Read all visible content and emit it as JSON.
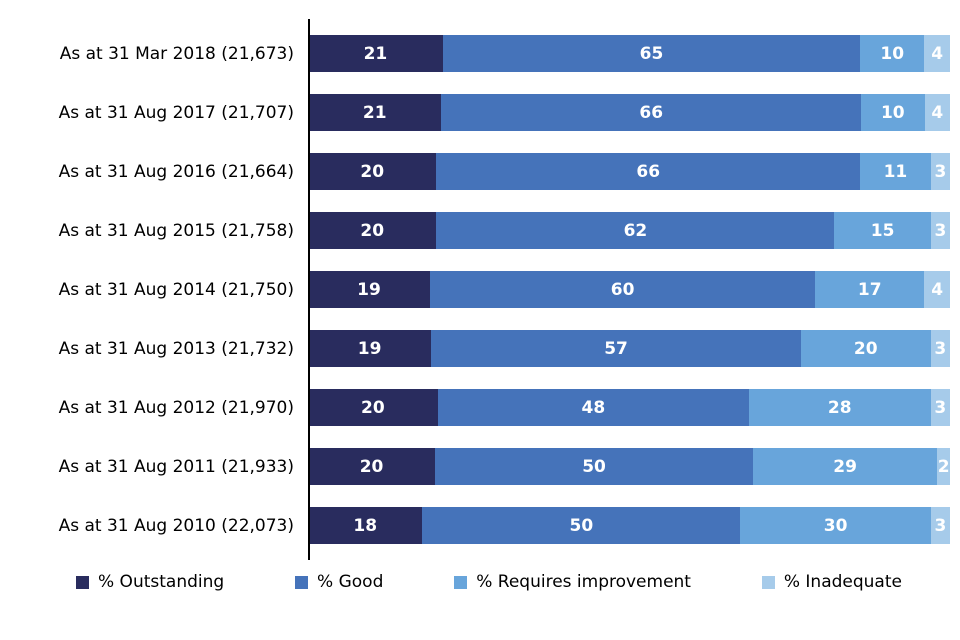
{
  "chart_data": {
    "type": "bar",
    "orientation": "horizontal",
    "stacked": true,
    "title": "",
    "xlabel": "",
    "ylabel": "",
    "xlim": [
      0,
      100
    ],
    "grid": false,
    "legend_position": "bottom",
    "categories": [
      "As at 31 Mar 2018 (21,673)",
      "As at 31 Aug 2017 (21,707)",
      "As at 31 Aug 2016 (21,664)",
      "As at 31 Aug 2015 (21,758)",
      "As at 31 Aug 2014 (21,750)",
      "As at 31 Aug 2013 (21,732)",
      "As at 31 Aug 2012 (21,970)",
      "As at 31 Aug 2011 (21,933)",
      "As at 31 Aug 2010 (22,073)"
    ],
    "series": [
      {
        "name": "% Outstanding",
        "color": "#292C5E",
        "values": [
          21,
          21,
          20,
          20,
          19,
          19,
          20,
          20,
          18
        ]
      },
      {
        "name": "% Good",
        "color": "#4573BA",
        "values": [
          65,
          66,
          66,
          62,
          60,
          57,
          48,
          50,
          50
        ]
      },
      {
        "name": "% Requires improvement",
        "color": "#68A5DB",
        "values": [
          10,
          10,
          11,
          15,
          17,
          20,
          28,
          29,
          30
        ]
      },
      {
        "name": "% Inadequate",
        "color": "#A6CBEA",
        "values": [
          4,
          4,
          3,
          3,
          4,
          3,
          3,
          2,
          3
        ]
      }
    ]
  }
}
